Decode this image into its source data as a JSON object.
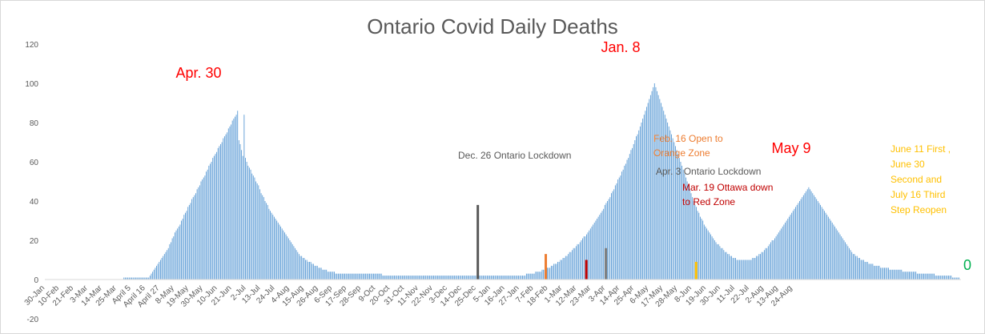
{
  "chart_data": {
    "type": "bar",
    "title": "Ontario Covid Daily Deaths",
    "xlabel": "",
    "ylabel": "",
    "ylim": [
      -20,
      120
    ],
    "yticks": [
      -20,
      0,
      20,
      40,
      60,
      80,
      100,
      120
    ],
    "grid": false,
    "legend": "none",
    "xtick_labels": [
      "30-Jan",
      "10-Feb",
      "21-Feb",
      "3-Mar",
      "14-Mar",
      "25-Mar",
      "April 5",
      "April 16",
      "April 27",
      "8-May",
      "19-May",
      "30-May",
      "10-Jun",
      "21-Jun",
      "2-Jul",
      "13-Jul",
      "24-Jul",
      "4-Aug",
      "15-Aug",
      "26-Aug",
      "6-Sep",
      "17-Sep",
      "28-Sep",
      "9-Oct",
      "20-Oct",
      "31-Oct",
      "11-Nov",
      "22-Nov",
      "3-Dec",
      "14-Dec",
      "25-Dec",
      "5-Jan",
      "16-Jan",
      "27-Jan",
      "7-Feb",
      "18-Feb",
      "1-Mar",
      "12-Mar",
      "23-Mar",
      "3-Apr",
      "14-Apr",
      "25-Apr",
      "6-May",
      "17-May",
      "28-May",
      "8-Jun",
      "19-Jun",
      "30-Jun",
      "11-Jul",
      "22-Jul",
      "2-Aug",
      "13-Aug",
      "24-Aug"
    ],
    "colors": {
      "bar": "#5b9bd5",
      "dec26": "#595959",
      "feb16": "#ed7d31",
      "mar19": "#c00000",
      "apr3": "#7f7f7f",
      "jun11": "#ffc000"
    },
    "key_points": [
      {
        "date": "2020-04-30",
        "deaths": 86,
        "label": "Apr. 30"
      },
      {
        "date": "2021-01-08",
        "deaths": 100,
        "label": "Jan. 8"
      },
      {
        "date": "2021-05-09",
        "deaths": 47,
        "label": "May 9"
      },
      {
        "date": "2021-08-29",
        "deaths": 0,
        "label": "0"
      }
    ],
    "events": [
      {
        "date": "2020-12-26",
        "deaths": 38,
        "label": "Dec. 26 Ontario Lockdown",
        "color": "#595959"
      },
      {
        "date": "2021-02-16",
        "deaths": 13,
        "label": "Feb. 16 Open to Orange Zone",
        "color": "#ed7d31"
      },
      {
        "date": "2021-03-19",
        "deaths": 10,
        "label": "Mar. 19 Ottawa down to Red Zone",
        "color": "#c00000"
      },
      {
        "date": "2021-04-03",
        "deaths": 16,
        "label": "Apr. 3 Ontario Lockdown",
        "color": "#7f7f7f"
      },
      {
        "date": "2021-06-11",
        "deaths": 9,
        "label": "June 11 First , June 30 Second and July 16 Third Step Reopen",
        "color": "#ffc000"
      }
    ],
    "values": [
      0,
      0,
      0,
      0,
      0,
      0,
      0,
      0,
      0,
      0,
      0,
      0,
      0,
      0,
      0,
      0,
      0,
      0,
      0,
      0,
      0,
      0,
      0,
      0,
      0,
      0,
      0,
      0,
      0,
      0,
      0,
      0,
      0,
      0,
      0,
      0,
      0,
      0,
      0,
      0,
      0,
      0,
      0,
      0,
      0,
      0,
      0,
      0,
      0,
      0,
      0,
      0,
      0,
      0,
      0,
      0,
      0,
      0,
      0,
      0,
      1,
      1,
      1,
      1,
      1,
      1,
      1,
      1,
      1,
      1,
      1,
      1,
      1,
      1,
      1,
      1,
      1,
      1,
      1,
      1,
      2,
      3,
      4,
      5,
      6,
      7,
      8,
      9,
      10,
      11,
      12,
      13,
      14,
      15,
      16,
      18,
      19,
      21,
      22,
      24,
      25,
      26,
      27,
      28,
      30,
      31,
      33,
      34,
      35,
      37,
      38,
      39,
      41,
      42,
      43,
      44,
      46,
      47,
      48,
      50,
      51,
      52,
      53,
      55,
      56,
      58,
      59,
      60,
      62,
      63,
      64,
      65,
      67,
      68,
      69,
      70,
      72,
      73,
      74,
      75,
      77,
      78,
      79,
      81,
      82,
      83,
      84,
      86,
      71,
      69,
      66,
      63,
      84,
      62,
      60,
      58,
      57,
      56,
      54,
      53,
      52,
      50,
      49,
      48,
      46,
      44,
      43,
      42,
      40,
      39,
      38,
      36,
      35,
      34,
      33,
      32,
      31,
      30,
      29,
      28,
      27,
      26,
      25,
      24,
      23,
      22,
      21,
      20,
      19,
      18,
      17,
      16,
      15,
      14,
      13,
      12,
      12,
      11,
      11,
      10,
      10,
      9,
      9,
      9,
      8,
      8,
      7,
      7,
      7,
      6,
      6,
      6,
      5,
      5,
      5,
      5,
      4,
      4,
      4,
      4,
      4,
      4,
      3,
      3,
      3,
      3,
      3,
      3,
      3,
      3,
      3,
      3,
      3,
      3,
      3,
      3,
      3,
      3,
      3,
      3,
      3,
      3,
      3,
      3,
      3,
      3,
      3,
      3,
      3,
      3,
      3,
      3,
      3,
      3,
      3,
      3,
      3,
      3,
      2,
      2,
      2,
      2,
      2,
      2,
      2,
      2,
      2,
      2,
      2,
      2,
      2,
      2,
      2,
      2,
      2,
      2,
      2,
      2,
      2,
      2,
      2,
      2,
      2,
      2,
      2,
      2,
      2,
      2,
      2,
      2,
      2,
      2,
      2,
      2,
      2,
      2,
      2,
      2,
      2,
      2,
      2,
      2,
      2,
      2,
      2,
      2,
      2,
      2,
      2,
      2,
      2,
      2,
      2,
      2,
      2,
      2,
      2,
      2,
      2,
      2,
      2,
      2,
      2,
      2,
      2,
      2,
      2,
      2,
      2,
      2,
      2,
      2,
      2,
      2,
      2,
      2,
      2,
      2,
      2,
      2,
      2,
      2,
      2,
      2,
      2,
      2,
      2,
      2,
      2,
      2,
      2,
      2,
      2,
      2,
      2,
      2,
      2,
      2,
      2,
      2,
      2,
      2,
      2,
      2,
      2,
      2,
      2,
      2,
      3,
      3,
      3,
      3,
      3,
      3,
      3,
      4,
      4,
      4,
      4,
      4,
      5,
      5,
      5,
      5,
      6,
      6,
      6,
      7,
      7,
      8,
      8,
      8,
      9,
      9,
      10,
      10,
      11,
      11,
      12,
      12,
      13,
      14,
      14,
      15,
      16,
      16,
      17,
      18,
      18,
      19,
      20,
      21,
      22,
      22,
      23,
      24,
      25,
      26,
      27,
      28,
      29,
      30,
      31,
      32,
      33,
      34,
      35,
      36,
      38,
      39,
      40,
      41,
      42,
      44,
      45,
      46,
      48,
      49,
      51,
      52,
      53,
      55,
      56,
      58,
      59,
      61,
      62,
      64,
      66,
      67,
      69,
      71,
      73,
      74,
      76,
      78,
      80,
      82,
      84,
      86,
      88,
      90,
      92,
      94,
      96,
      98,
      100,
      98,
      96,
      94,
      92,
      90,
      88,
      86,
      84,
      82,
      80,
      78,
      76,
      74,
      72,
      70,
      68,
      66,
      64,
      62,
      60,
      58,
      56,
      54,
      52,
      50,
      48,
      46,
      44,
      42,
      40,
      38,
      37,
      35,
      34,
      32,
      31,
      30,
      28,
      27,
      26,
      25,
      24,
      23,
      22,
      21,
      20,
      19,
      18,
      18,
      17,
      16,
      16,
      15,
      14,
      14,
      13,
      13,
      12,
      12,
      11,
      11,
      11,
      10,
      10,
      10,
      10,
      10,
      10,
      10,
      10,
      10,
      10,
      10,
      10,
      11,
      11,
      11,
      12,
      12,
      13,
      13,
      14,
      14,
      15,
      16,
      16,
      17,
      18,
      19,
      20,
      20,
      21,
      22,
      23,
      24,
      25,
      26,
      27,
      28,
      29,
      30,
      31,
      32,
      33,
      34,
      35,
      36,
      37,
      38,
      39,
      40,
      41,
      42,
      43,
      44,
      45,
      46,
      47,
      46,
      45,
      44,
      43,
      42,
      41,
      40,
      39,
      38,
      37,
      36,
      35,
      34,
      33,
      32,
      31,
      30,
      29,
      28,
      27,
      26,
      25,
      24,
      23,
      22,
      21,
      20,
      19,
      18,
      17,
      16,
      15,
      14,
      13,
      13,
      12,
      12,
      11,
      11,
      10,
      10,
      10,
      9,
      9,
      9,
      8,
      8,
      8,
      8,
      7,
      7,
      7,
      7,
      7,
      6,
      6,
      6,
      6,
      6,
      6,
      6,
      5,
      5,
      5,
      5,
      5,
      5,
      5,
      5,
      5,
      5,
      4,
      4,
      4,
      4,
      4,
      4,
      4,
      4,
      4,
      4,
      4,
      3,
      3,
      3,
      3,
      3,
      3,
      3,
      3,
      3,
      3,
      3,
      3,
      3,
      3,
      2,
      2,
      2,
      2,
      2,
      2,
      2,
      2,
      2,
      2,
      2,
      2,
      2,
      1,
      1,
      1,
      1,
      1,
      1,
      0
    ]
  },
  "annotations": {
    "apr30": "Apr. 30",
    "jan8": "Jan. 8",
    "may9": "May 9",
    "zero": "0",
    "dec26": "Dec. 26 Ontario Lockdown",
    "feb16_line1": "Feb. 16 Open to",
    "feb16_line2": "Orange Zone",
    "apr3": "Apr. 3 Ontario Lockdown",
    "mar19_line1": "Mar. 19 Ottawa down",
    "mar19_line2": "to Red Zone",
    "jun_line1": "June 11 First ,",
    "jun_line2": "June 30",
    "jun_line3": "Second and",
    "jun_line4": "July 16 Third",
    "jun_line5": "Step Reopen"
  }
}
